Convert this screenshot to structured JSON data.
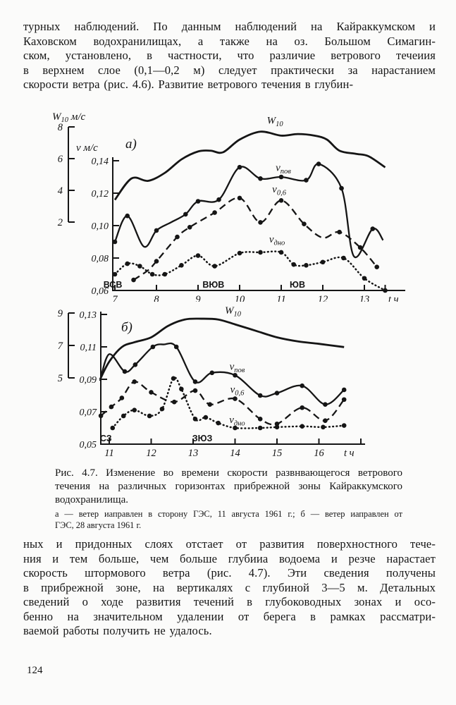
{
  "page": {
    "page_number": "124",
    "top_paragraph": {
      "lines": [
        "турных наблюдений. По данным наблюдений на Кайраккумском и",
        "Каховском водохранилищах, а также на оз. Большом Симагин-",
        "ском, установлено, в частности, что различие ветрового течеиия",
        "в верхнем слое (0,1—0,2 м) следует практически за нарастанием",
        "скорости ветра (рис. 4.6). Развитие ветрового течения в глубин-"
      ]
    },
    "bottom_paragraph": {
      "lines": [
        "ных и придонных слоях отстает от развития поверхностного тече-",
        "ния и тем больше, чем больше глубииа водоема и резче нарастает",
        "скорость штормового ветра (рис. 4.7). Эти сведения получены",
        "в прибрежной зоне, на вертикалях с глубиной 3—5 м. Детальных",
        "сведений о ходе развития течений в глубоководных зонах и осо-",
        "бенно на значительном удалении от берега в рамках рассматри-",
        "ваемой работы получить не удалось."
      ]
    },
    "caption": {
      "lines": [
        "Рис. 4.7. Изменение во времени скорости развнвающегося ветрового",
        "течения на различных горизонтах прибрежной зоны Кайраккумского",
        "водохранилища."
      ]
    },
    "subcaption": {
      "lines": [
        "а — ветер иаправлен в сторону ГЭС, 11 августа 1961 г.; б — ветер иаправлен от",
        "ГЭС, 28 августа 1961 г."
      ]
    }
  },
  "chart_data": [
    {
      "type": "line",
      "id": "a",
      "panel_label": "а)",
      "x_axis": {
        "label": "t ч",
        "ticks": [
          7,
          8,
          9,
          10,
          11,
          12,
          13
        ]
      },
      "y_axis_w": {
        "title_main": "W",
        "title_sub": "10",
        "title_rest": " м/с",
        "ticks": [
          8,
          6,
          4,
          2
        ]
      },
      "y_axis_v": {
        "title_main": "v",
        "title_rest": " м/с",
        "ticks": [
          0.14,
          0.12,
          0.1,
          0.08,
          0.06
        ]
      },
      "wind_sector_labels": [
        {
          "text": "ВСВ",
          "x": 6.95
        },
        {
          "text": "ВЮВ",
          "x": 9.37
        },
        {
          "text": "ЮВ",
          "x": 11.39
        }
      ],
      "series": [
        {
          "name": "W10",
          "label_main": "W",
          "label_sub": "10",
          "scale": "w",
          "style": "solid-thick",
          "label_at": [
            10.85,
            8.2
          ],
          "points": [
            [
              7,
              3.4
            ],
            [
              7.4,
              4.75
            ],
            [
              7.8,
              4.6
            ],
            [
              8.2,
              5.1
            ],
            [
              8.6,
              5.95
            ],
            [
              9,
              6.45
            ],
            [
              9.3,
              6.5
            ],
            [
              9.6,
              6.4
            ],
            [
              10,
              7.2
            ],
            [
              10.5,
              7.7
            ],
            [
              11,
              7.45
            ],
            [
              11.4,
              7.55
            ],
            [
              11.8,
              7.45
            ],
            [
              12.1,
              7.2
            ],
            [
              12.4,
              6.5
            ],
            [
              12.8,
              6.3
            ],
            [
              13.1,
              6.15
            ],
            [
              13.5,
              5.45
            ]
          ]
        },
        {
          "name": "v_pov",
          "label_main": "v",
          "label_sub": "пов",
          "scale": "v",
          "style": "solid-markers",
          "label_at": [
            11.05,
            0.1338
          ],
          "points": [
            [
              7,
              0.09
            ],
            [
              7.3,
              0.106
            ],
            [
              7.7,
              0.087
            ],
            [
              8,
              0.097
            ],
            [
              8.35,
              0.102
            ],
            [
              8.7,
              0.107
            ],
            [
              9,
              0.115
            ],
            [
              9.5,
              0.116
            ],
            [
              10,
              0.136
            ],
            [
              10.5,
              0.129
            ],
            [
              11,
              0.13
            ],
            [
              11.6,
              0.128
            ],
            [
              11.9,
              0.138
            ],
            [
              12.45,
              0.123
            ],
            [
              12.75,
              0.081
            ],
            [
              13.2,
              0.098
            ],
            [
              13.45,
              0.091
            ]
          ],
          "marker_x": [
            7,
            7.3,
            8,
            8.7,
            9,
            9.5,
            10,
            10.5,
            11,
            11.6,
            11.9,
            12.45,
            13.2
          ]
        },
        {
          "name": "v_06",
          "label_main": "v",
          "label_sub": "0,6",
          "scale": "v",
          "style": "dashed-markers",
          "label_at": [
            10.95,
            0.1205
          ],
          "points": [
            [
              7.45,
              0.0665
            ],
            [
              7.8,
              0.0725
            ],
            [
              8,
              0.078
            ],
            [
              8.5,
              0.093
            ],
            [
              8.8,
              0.099
            ],
            [
              9.4,
              0.108
            ],
            [
              10,
              0.117
            ],
            [
              10.5,
              0.102
            ],
            [
              11,
              0.1155
            ],
            [
              11.55,
              0.101
            ],
            [
              12,
              0.0925
            ],
            [
              12.4,
              0.096
            ],
            [
              12.9,
              0.0865
            ],
            [
              13.3,
              0.0745
            ]
          ],
          "marker_x": [
            7.45,
            8,
            8.5,
            8.8,
            9.4,
            10,
            10.5,
            11,
            11.55,
            12.4,
            12.9,
            13.3
          ]
        },
        {
          "name": "v_dno",
          "label_main": "v",
          "label_sub": "дно",
          "scale": "v",
          "style": "dotted-markers",
          "label_at": [
            10.9,
            0.0895
          ],
          "points": [
            [
              7,
              0.07
            ],
            [
              7.3,
              0.0765
            ],
            [
              7.6,
              0.075
            ],
            [
              7.9,
              0.07
            ],
            [
              8.2,
              0.07
            ],
            [
              8.6,
              0.0755
            ],
            [
              9,
              0.0815
            ],
            [
              9.4,
              0.075
            ],
            [
              10,
              0.083
            ],
            [
              10.5,
              0.0835
            ],
            [
              11,
              0.0835
            ],
            [
              11.3,
              0.076
            ],
            [
              11.6,
              0.0755
            ],
            [
              12,
              0.0775
            ],
            [
              12.5,
              0.08
            ],
            [
              13,
              0.0675
            ],
            [
              13.5,
              0.06
            ]
          ]
        }
      ]
    },
    {
      "type": "line",
      "id": "b",
      "panel_label": "б)",
      "x_axis": {
        "label": "t ч",
        "ticks": [
          11,
          12,
          13,
          14,
          15,
          16
        ]
      },
      "y_axis_w": {
        "ticks": [
          9,
          7,
          5
        ]
      },
      "y_axis_v": {
        "ticks": [
          0.13,
          0.11,
          0.09,
          0.07,
          0.05
        ]
      },
      "wind_sector_labels": [
        {
          "text": "СЗ",
          "x": 10.92
        },
        {
          "text": "ЗЮЗ",
          "x": 13.22
        }
      ],
      "series": [
        {
          "name": "W10",
          "label_main": "W",
          "label_sub": "10",
          "scale": "w",
          "style": "solid-thick",
          "label_at": [
            13.95,
            8.95
          ],
          "points": [
            [
              10.78,
              4.9
            ],
            [
              11,
              6.0
            ],
            [
              11.3,
              6.9
            ],
            [
              11.6,
              7.2
            ],
            [
              12,
              7.5
            ],
            [
              12.4,
              8.2
            ],
            [
              12.8,
              8.6
            ],
            [
              13.2,
              8.65
            ],
            [
              13.6,
              8.6
            ],
            [
              14,
              8.3
            ],
            [
              14.5,
              7.9
            ],
            [
              15,
              7.5
            ],
            [
              15.5,
              7.25
            ],
            [
              16,
              7.1
            ],
            [
              16.6,
              6.9
            ]
          ]
        },
        {
          "name": "v_pov",
          "label_main": "v",
          "label_sub": "пов",
          "scale": "v",
          "style": "solid-markers",
          "label_at": [
            14.05,
            0.0958
          ],
          "points": [
            [
              10.78,
              0.089
            ],
            [
              11,
              0.1055
            ],
            [
              11.37,
              0.0948
            ],
            [
              11.62,
              0.099
            ],
            [
              12.04,
              0.11
            ],
            [
              12.3,
              0.1115
            ],
            [
              12.6,
              0.11
            ],
            [
              13.05,
              0.0885
            ],
            [
              13.45,
              0.094
            ],
            [
              14,
              0.0925
            ],
            [
              14.6,
              0.08
            ],
            [
              15,
              0.0815
            ],
            [
              15.6,
              0.086
            ],
            [
              16.15,
              0.0745
            ],
            [
              16.6,
              0.0835
            ]
          ],
          "marker_x": [
            11.37,
            11.62,
            12.04,
            12.6,
            13.05,
            13.45,
            14,
            14.6,
            15,
            15.6,
            16.15,
            16.6
          ]
        },
        {
          "name": "v_06",
          "label_main": "v",
          "label_sub": "0,6",
          "scale": "v",
          "style": "dashed-markers",
          "label_at": [
            14.05,
            0.0818
          ],
          "points": [
            [
              10.8,
              0.0675
            ],
            [
              11.05,
              0.073
            ],
            [
              11.3,
              0.0785
            ],
            [
              11.6,
              0.0885
            ],
            [
              12,
              0.082
            ],
            [
              12.55,
              0.076
            ],
            [
              13.05,
              0.083
            ],
            [
              13.4,
              0.0745
            ],
            [
              14,
              0.078
            ],
            [
              14.6,
              0.0655
            ],
            [
              15,
              0.0625
            ],
            [
              15.6,
              0.0725
            ],
            [
              16.15,
              0.0645
            ],
            [
              16.6,
              0.0775
            ]
          ]
        },
        {
          "name": "v_dno",
          "label_main": "v",
          "label_sub": "дно",
          "scale": "v",
          "style": "dotted-markers",
          "label_at": [
            14.05,
            0.063
          ],
          "points": [
            [
              11.08,
              0.06
            ],
            [
              11.34,
              0.0674
            ],
            [
              11.6,
              0.071
            ],
            [
              11.96,
              0.0674
            ],
            [
              12.26,
              0.0717
            ],
            [
              12.53,
              0.0905
            ],
            [
              12.72,
              0.084
            ],
            [
              13.05,
              0.0655
            ],
            [
              13.3,
              0.0665
            ],
            [
              13.6,
              0.063
            ],
            [
              14,
              0.06
            ],
            [
              14.6,
              0.06
            ],
            [
              15,
              0.0605
            ],
            [
              15.6,
              0.061
            ],
            [
              16.1,
              0.0605
            ],
            [
              16.6,
              0.0615
            ]
          ]
        }
      ]
    }
  ]
}
